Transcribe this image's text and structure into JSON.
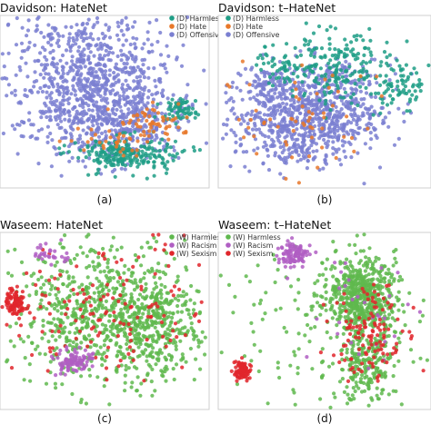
{
  "colors": {
    "davidson_harmless": "#1f9e86",
    "davidson_hate": "#e8782a",
    "davidson_offensive": "#7a7fd1",
    "waseem_harmless": "#5fb84e",
    "waseem_racism": "#b05ec3",
    "waseem_sexism": "#e0262b"
  },
  "chart_data": [
    {
      "type": "scatter",
      "title": "Davidson: HateNet",
      "caption": "(a)",
      "legend": [
        "(D) Harmless",
        "(D) Hate",
        "(D) Offensive"
      ],
      "legend_placement": "top-right",
      "grid": false,
      "clusters": [
        {
          "series": "(D) Offensive",
          "x": 0.42,
          "y": 0.38,
          "sx": 0.2,
          "sy": 0.22,
          "n": 900
        },
        {
          "series": "(D) Offensive",
          "x": 0.62,
          "y": 0.62,
          "sx": 0.14,
          "sy": 0.1,
          "n": 250
        },
        {
          "series": "(D) Harmless",
          "x": 0.6,
          "y": 0.8,
          "sx": 0.12,
          "sy": 0.05,
          "n": 230
        },
        {
          "series": "(D) Harmless",
          "x": 0.86,
          "y": 0.55,
          "sx": 0.04,
          "sy": 0.03,
          "n": 60
        },
        {
          "series": "(D) Hate",
          "x": 0.72,
          "y": 0.62,
          "sx": 0.08,
          "sy": 0.05,
          "n": 55
        },
        {
          "series": "(D) Hate",
          "x": 0.52,
          "y": 0.73,
          "sx": 0.1,
          "sy": 0.04,
          "n": 35
        }
      ]
    },
    {
      "type": "scatter",
      "title": "Davidson: t–HateNet",
      "caption": "(b)",
      "legend": [
        "(D) Harmless",
        "(D) Hate",
        "(D) Offensive"
      ],
      "legend_placement": "top-left",
      "grid": false,
      "clusters": [
        {
          "series": "(D) Offensive",
          "x": 0.4,
          "y": 0.62,
          "sx": 0.18,
          "sy": 0.13,
          "n": 700
        },
        {
          "series": "(D) Offensive",
          "x": 0.5,
          "y": 0.42,
          "sx": 0.14,
          "sy": 0.1,
          "n": 200
        },
        {
          "series": "(D) Offensive",
          "x": 0.25,
          "y": 0.4,
          "sx": 0.06,
          "sy": 0.05,
          "n": 60
        },
        {
          "series": "(D) Harmless",
          "x": 0.55,
          "y": 0.3,
          "sx": 0.1,
          "sy": 0.12,
          "n": 180
        },
        {
          "series": "(D) Harmless",
          "x": 0.85,
          "y": 0.4,
          "sx": 0.06,
          "sy": 0.08,
          "n": 80
        },
        {
          "series": "(D) Harmless",
          "x": 0.3,
          "y": 0.3,
          "sx": 0.06,
          "sy": 0.05,
          "n": 50
        },
        {
          "series": "(D) Hate",
          "x": 0.45,
          "y": 0.55,
          "sx": 0.2,
          "sy": 0.16,
          "n": 60
        }
      ]
    },
    {
      "type": "scatter",
      "title": "Waseem: HateNet",
      "caption": "(c)",
      "legend": [
        "(W) Harmless",
        "(W) Racism",
        "(W) Sexism"
      ],
      "legend_placement": "top-right",
      "grid": false,
      "clusters": [
        {
          "series": "(W) Harmless",
          "x": 0.5,
          "y": 0.45,
          "sx": 0.22,
          "sy": 0.2,
          "n": 800
        },
        {
          "series": "(W) Harmless",
          "x": 0.78,
          "y": 0.55,
          "sx": 0.1,
          "sy": 0.12,
          "n": 200
        },
        {
          "series": "(W) Sexism",
          "x": 0.5,
          "y": 0.45,
          "sx": 0.24,
          "sy": 0.2,
          "n": 150
        },
        {
          "series": "(W) Sexism",
          "x": 0.07,
          "y": 0.4,
          "sx": 0.03,
          "sy": 0.04,
          "n": 90
        },
        {
          "series": "(W) Racism",
          "x": 0.34,
          "y": 0.72,
          "sx": 0.05,
          "sy": 0.03,
          "n": 90
        },
        {
          "series": "(W) Racism",
          "x": 0.24,
          "y": 0.12,
          "sx": 0.05,
          "sy": 0.03,
          "n": 30
        }
      ]
    },
    {
      "type": "scatter",
      "title": "Waseem:  t–HateNet",
      "caption": "(d)",
      "legend": [
        "(W) Harmless",
        "(W) Racism",
        "(W) Sexism"
      ],
      "legend_placement": "top-left",
      "grid": false,
      "clusters": [
        {
          "series": "(W) Harmless",
          "x": 0.68,
          "y": 0.35,
          "sx": 0.08,
          "sy": 0.1,
          "n": 550
        },
        {
          "series": "(W) Harmless",
          "x": 0.7,
          "y": 0.7,
          "sx": 0.07,
          "sy": 0.14,
          "n": 250
        },
        {
          "series": "(W) Harmless",
          "x": 0.5,
          "y": 0.55,
          "sx": 0.25,
          "sy": 0.25,
          "n": 150
        },
        {
          "series": "(W) Racism",
          "x": 0.36,
          "y": 0.12,
          "sx": 0.04,
          "sy": 0.03,
          "n": 100
        },
        {
          "series": "(W) Racism",
          "x": 0.7,
          "y": 0.45,
          "sx": 0.12,
          "sy": 0.2,
          "n": 30
        },
        {
          "series": "(W) Sexism",
          "x": 0.11,
          "y": 0.78,
          "sx": 0.02,
          "sy": 0.025,
          "n": 90
        },
        {
          "series": "(W) Sexism",
          "x": 0.7,
          "y": 0.6,
          "sx": 0.08,
          "sy": 0.15,
          "n": 120
        }
      ]
    }
  ]
}
